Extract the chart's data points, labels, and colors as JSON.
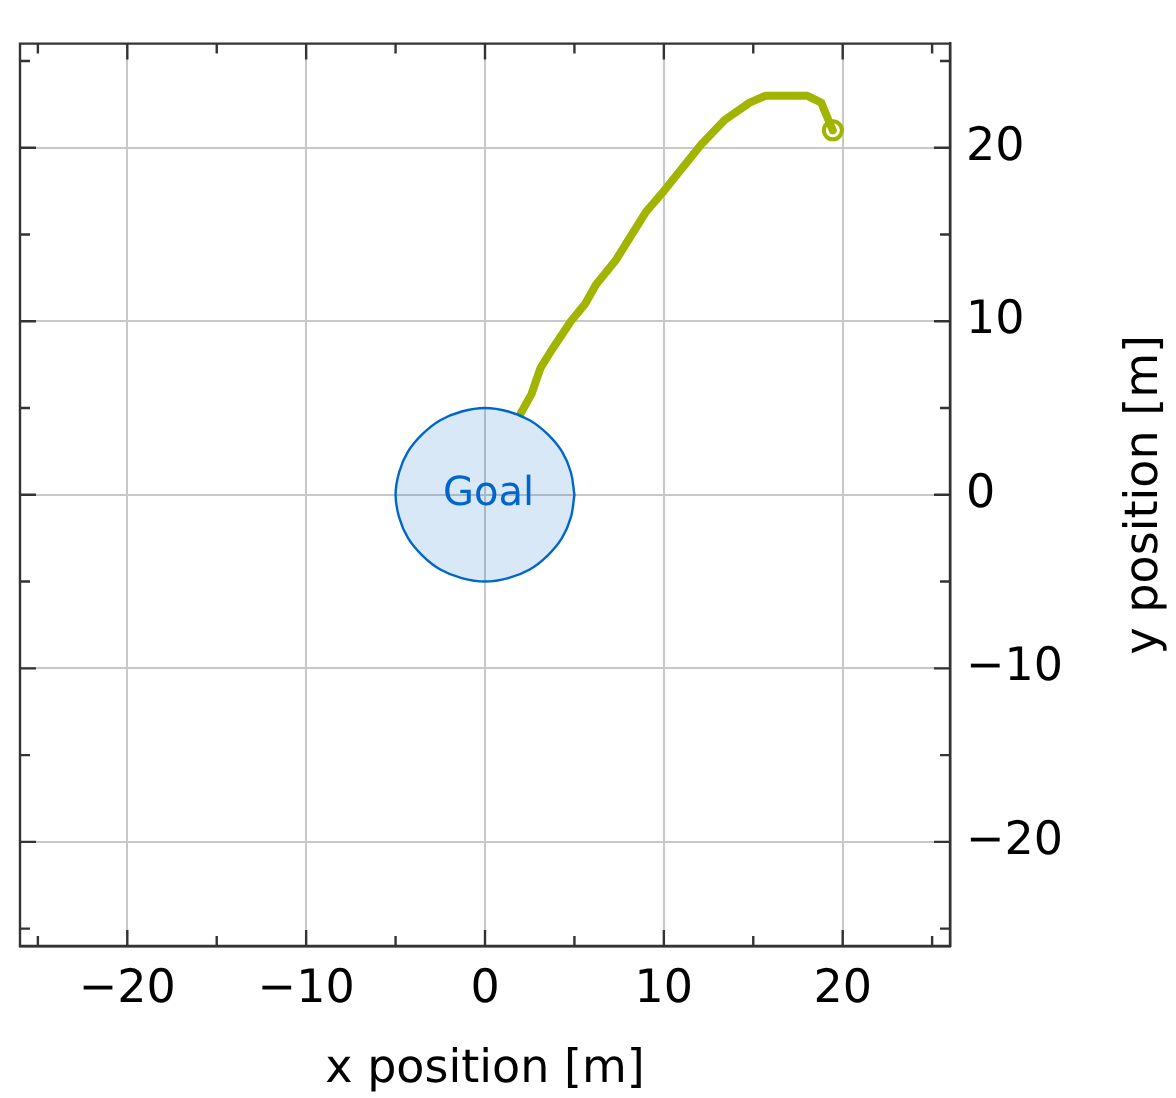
{
  "chart_data": {
    "type": "line",
    "xlabel": "x position [m]",
    "ylabel": "y position [m]",
    "xlim": [
      -26,
      26
    ],
    "ylim": [
      -26,
      26
    ],
    "xticks": [
      {
        "value": -25,
        "label": null
      },
      -20,
      {
        "value": -15,
        "label": null
      },
      -10,
      {
        "value": -5,
        "label": null
      },
      0,
      {
        "value": 5,
        "label": null
      },
      10,
      {
        "value": 15,
        "label": null
      },
      20,
      {
        "value": 25,
        "label": null
      }
    ],
    "yticks": [
      {
        "value": -25,
        "label": null
      },
      -20,
      {
        "value": -15,
        "label": null
      },
      -10,
      {
        "value": -5,
        "label": null
      },
      0,
      {
        "value": 5,
        "label": null
      },
      10,
      {
        "value": 15,
        "label": null
      },
      20,
      {
        "value": 25,
        "label": null
      }
    ],
    "grid": true,
    "legend": false,
    "series": [
      {
        "name": "Goal",
        "type": "area",
        "color": "#0066cc",
        "marker": "none",
        "x": [
          5,
          4.8,
          4.3,
          3.5,
          2.5,
          1.3,
          0,
          -1.3,
          -2.5,
          -3.5,
          -4.3,
          -4.8,
          -5,
          -4.8,
          -4.3,
          -3.5,
          -2.5,
          -1.3,
          0,
          1.3,
          2.5,
          3.5,
          4.3,
          4.8,
          5
        ],
        "values": [
          0,
          1.3,
          2.5,
          3.5,
          4.3,
          4.8,
          5,
          4.8,
          4.3,
          3.5,
          2.5,
          1.3,
          0,
          -1.3,
          -2.5,
          -3.5,
          -4.3,
          -4.8,
          -5,
          -4.8,
          -4.3,
          -3.5,
          -2.5,
          -1.3,
          0
        ]
      },
      {
        "type": "line",
        "color": "#a0b400",
        "marker": "none",
        "line_style": "solid",
        "x": [
          19.45,
          19.2,
          18.8,
          18.0,
          15.7,
          14.8,
          13.4,
          12.1,
          10.0,
          9.0,
          7.3,
          6.2,
          5.6,
          4.8,
          3.7,
          3.1,
          2.6,
          2.0
        ],
        "values": [
          21.0,
          21.6,
          22.6,
          23.0,
          23.0,
          22.6,
          21.6,
          20.2,
          17.5,
          16.3,
          13.5,
          12.1,
          11.0,
          10.0,
          8.3,
          7.3,
          5.8,
          4.7
        ]
      },
      {
        "type": "scatter",
        "color": "#a0b400",
        "marker": "circle",
        "x": [
          19.45
        ],
        "values": [
          21.0
        ]
      }
    ]
  }
}
